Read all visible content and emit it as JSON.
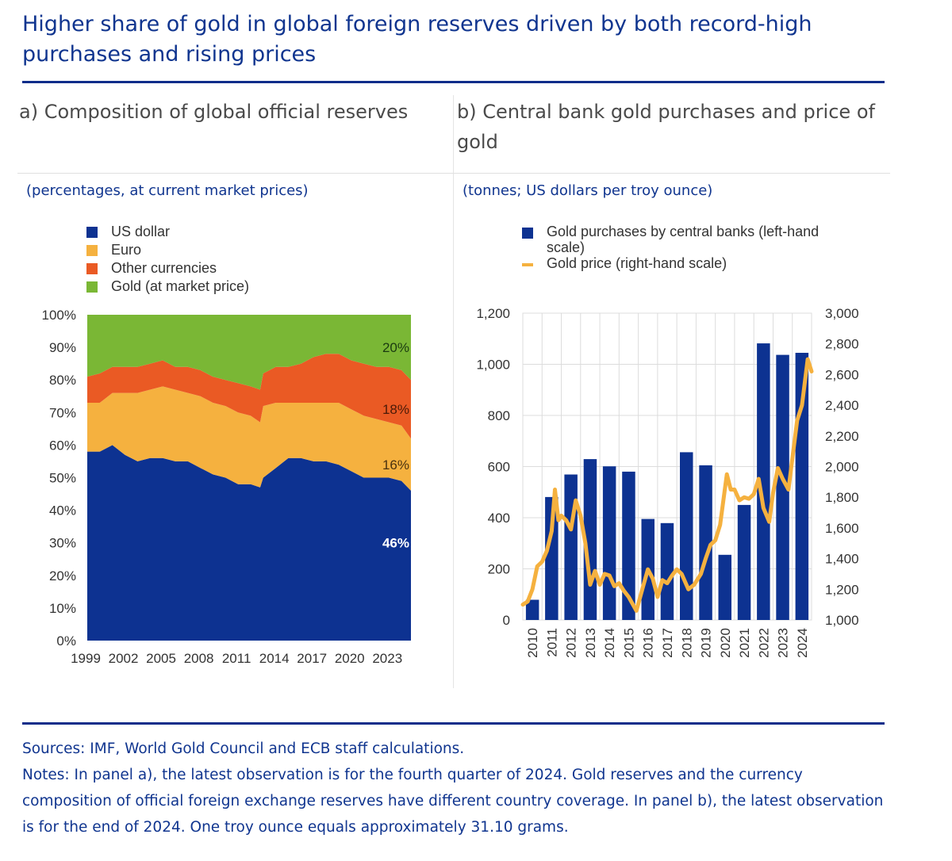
{
  "header": {
    "title": "Higher share of gold in global foreign reserves driven by both record-high purchases and rising prices"
  },
  "panels": {
    "a": {
      "title": "a) Composition of global official reserves",
      "unit": "(percentages, at current market prices)"
    },
    "b": {
      "title": "b) Central bank gold purchases and price of gold",
      "unit": "(tonnes; US dollars per troy ounce)"
    }
  },
  "footer": {
    "sources": "Sources: IMF, World Gold Council and ECB staff calculations.",
    "notes": "Notes: In panel a), the latest observation is for the fourth quarter of 2024. Gold reserves and the currency composition of official foreign exchange reserves have different country coverage. In panel b), the latest observation is for the end of 2024. One troy ounce equals approximately 31.10 grams."
  },
  "chart_data": [
    {
      "type": "area",
      "stacked": true,
      "title": "a) Composition of global official reserves",
      "subtitle": "(percentages, at current market prices)",
      "xlabel": "",
      "ylabel": "",
      "ylim": [
        0,
        100
      ],
      "xlim": [
        1999,
        2024.75
      ],
      "yticks": [
        "0%",
        "10%",
        "20%",
        "30%",
        "40%",
        "50%",
        "60%",
        "70%",
        "80%",
        "90%",
        "100%"
      ],
      "xticks": [
        "1999",
        "2002",
        "2005",
        "2008",
        "2011",
        "2014",
        "2017",
        "2020",
        "2023"
      ],
      "legend_position": "top-left",
      "grid": false,
      "x": [
        1999,
        2000,
        2001,
        2002,
        2003,
        2004,
        2005,
        2006,
        2007,
        2008,
        2009,
        2010,
        2011,
        2012,
        2012.75,
        2013,
        2014,
        2015,
        2016,
        2017,
        2018,
        2019,
        2020,
        2021,
        2022,
        2023,
        2024,
        2024.75
      ],
      "series": [
        {
          "name": "US dollar",
          "color": "#0d3291",
          "values": [
            58,
            58,
            60,
            57,
            55,
            56,
            56,
            55,
            55,
            53,
            51,
            50,
            48,
            48,
            47,
            50,
            53,
            56,
            56,
            55,
            55,
            54,
            52,
            50,
            50,
            50,
            49,
            46
          ]
        },
        {
          "name": "Euro",
          "color": "#f5b13f",
          "values": [
            15,
            15,
            16,
            19,
            21,
            21,
            22,
            22,
            21,
            22,
            22,
            22,
            22,
            21,
            20,
            22,
            20,
            17,
            17,
            18,
            18,
            19,
            19,
            19,
            18,
            17,
            17,
            16
          ]
        },
        {
          "name": "Other currencies",
          "color": "#ea5a24",
          "values": [
            8,
            9,
            8,
            8,
            8,
            8,
            8,
            7,
            8,
            8,
            8,
            8,
            9,
            9,
            10,
            10,
            11,
            11,
            12,
            14,
            15,
            15,
            15,
            16,
            16,
            17,
            17,
            18
          ]
        },
        {
          "name": "Gold (at market price)",
          "color": "#7ab735",
          "values": [
            19,
            18,
            16,
            16,
            16,
            15,
            14,
            16,
            16,
            17,
            19,
            20,
            21,
            22,
            23,
            18,
            16,
            16,
            15,
            13,
            12,
            12,
            14,
            15,
            16,
            16,
            17,
            20
          ]
        }
      ],
      "annotations": [
        {
          "text": "20%",
          "series": "Gold (at market price)",
          "color": "#1a3a10"
        },
        {
          "text": "18%",
          "series": "Other currencies",
          "color": "#4a1a08"
        },
        {
          "text": "16%",
          "series": "Euro",
          "color": "#4a3210"
        },
        {
          "text": "46%",
          "series": "US dollar",
          "color": "#ffffff"
        }
      ]
    },
    {
      "type": "bar",
      "title": "b) Central bank gold purchases and price of gold",
      "subtitle": "(tonnes; US dollars per troy ounce)",
      "categories": [
        "2010",
        "2011",
        "2012",
        "2013",
        "2014",
        "2015",
        "2016",
        "2017",
        "2018",
        "2019",
        "2020",
        "2021",
        "2022",
        "2023",
        "2024"
      ],
      "legend_position": "top",
      "grid": true,
      "ylim": [
        0,
        1200
      ],
      "yticks": [
        "0",
        "200",
        "400",
        "600",
        "800",
        "1,000",
        "1,200"
      ],
      "y2lim": [
        1000,
        3000
      ],
      "y2ticks": [
        "1,000",
        "1,200",
        "1,400",
        "1,600",
        "1,800",
        "2,000",
        "2,200",
        "2,400",
        "2,600",
        "2,800",
        "3,000"
      ],
      "series": [
        {
          "name": "Gold purchases by central banks (left-hand scale)",
          "type": "bar",
          "axis": "left",
          "color": "#0d3291",
          "values": [
            79,
            481,
            569,
            629,
            601,
            580,
            395,
            379,
            656,
            605,
            255,
            450,
            1082,
            1037,
            1045
          ]
        },
        {
          "name": "Gold price (right-hand scale)",
          "type": "line",
          "axis": "right",
          "color": "#f5b13f",
          "x": [
            2010.0,
            2010.25,
            2010.5,
            2010.75,
            2011.0,
            2011.25,
            2011.5,
            2011.67,
            2011.85,
            2012.0,
            2012.25,
            2012.5,
            2012.75,
            2013.0,
            2013.25,
            2013.5,
            2013.75,
            2014.0,
            2014.25,
            2014.5,
            2014.75,
            2015.0,
            2015.25,
            2015.5,
            2015.9,
            2016.25,
            2016.5,
            2016.75,
            2017.0,
            2017.25,
            2017.5,
            2017.75,
            2018.0,
            2018.25,
            2018.6,
            2018.9,
            2019.25,
            2019.5,
            2019.75,
            2020.0,
            2020.25,
            2020.6,
            2020.8,
            2021.0,
            2021.25,
            2021.5,
            2021.75,
            2022.0,
            2022.25,
            2022.5,
            2022.8,
            2023.0,
            2023.25,
            2023.5,
            2023.8,
            2024.0,
            2024.25,
            2024.5,
            2024.8,
            2025.0
          ],
          "values": [
            1100,
            1120,
            1200,
            1350,
            1380,
            1450,
            1580,
            1850,
            1650,
            1680,
            1650,
            1590,
            1780,
            1680,
            1500,
            1230,
            1320,
            1230,
            1300,
            1290,
            1220,
            1240,
            1190,
            1150,
            1060,
            1220,
            1330,
            1270,
            1150,
            1260,
            1240,
            1290,
            1330,
            1300,
            1200,
            1230,
            1300,
            1400,
            1490,
            1520,
            1620,
            1950,
            1850,
            1850,
            1780,
            1800,
            1790,
            1820,
            1920,
            1730,
            1640,
            1830,
            1990,
            1920,
            1850,
            2050,
            2300,
            2400,
            2700,
            2620
          ]
        }
      ]
    }
  ]
}
